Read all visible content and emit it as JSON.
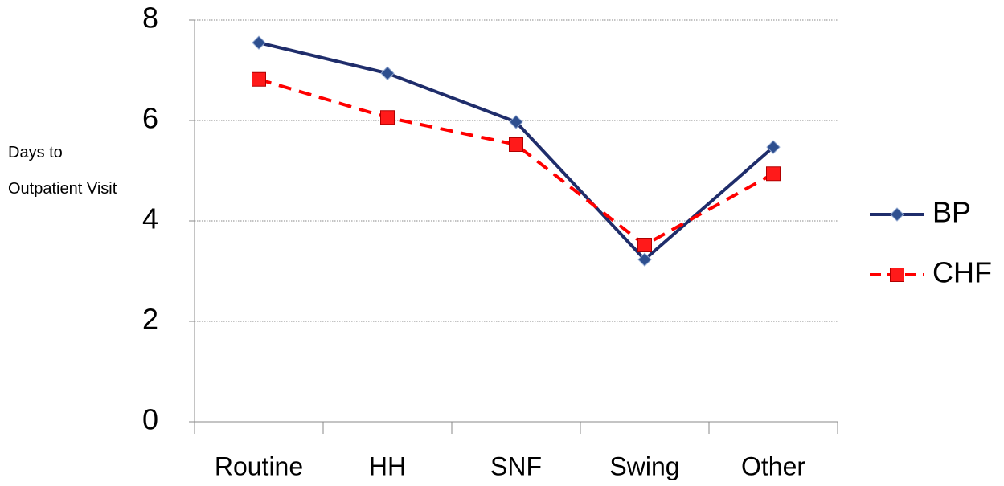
{
  "chart_data": {
    "type": "line",
    "y_label": "Days to Outpatient Visit",
    "categories": [
      "Routine",
      "HH",
      "SNF",
      "Swing",
      "Other"
    ],
    "series": [
      {
        "name": "BP",
        "color": "#1f2d6b",
        "marker": "diamond",
        "marker_color": "#2e4f8f",
        "dashed": false,
        "values": [
          7.55,
          6.94,
          5.97,
          3.23,
          5.47
        ]
      },
      {
        "name": "CHF",
        "color": "#ff0000",
        "marker": "square",
        "marker_color": "#ff1a1a",
        "dashed": true,
        "values": [
          6.82,
          6.06,
          5.52,
          3.52,
          4.94
        ]
      }
    ],
    "ylim": [
      0,
      8
    ],
    "yticks": [
      0,
      2,
      4,
      6,
      8
    ],
    "grid": true,
    "legend": "right"
  }
}
